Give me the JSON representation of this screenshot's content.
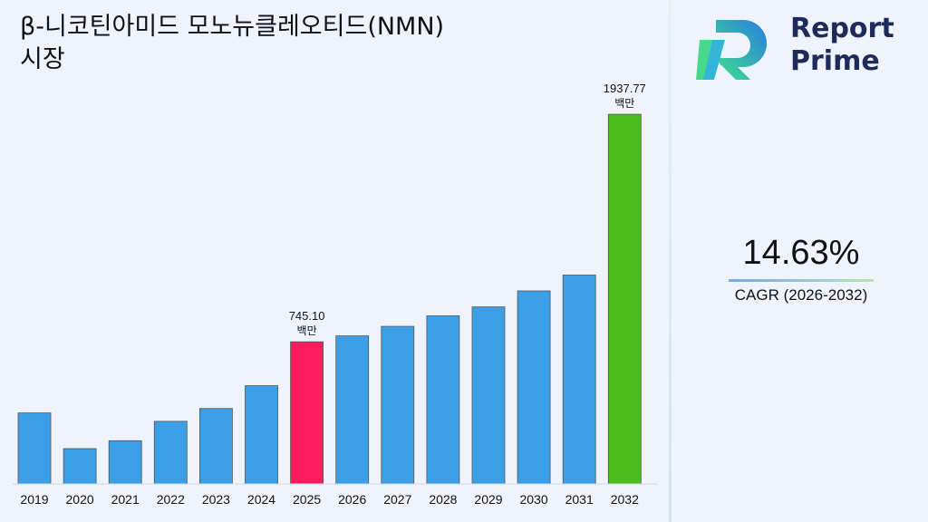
{
  "title": "β-니코틴아미드 모노뉴클레오티드(NMN) 시장",
  "brand": {
    "line1": "Report",
    "line2": "Prime"
  },
  "cagr": {
    "value": "14.63%",
    "label": "CAGR (2026-2032)"
  },
  "colors": {
    "bar": "#3a9fe6",
    "highlight": "#fc1c5c",
    "final": "#4cbc1c"
  },
  "chart_data": {
    "type": "bar",
    "categories": [
      "2019",
      "2020",
      "2021",
      "2022",
      "2023",
      "2024",
      "2025",
      "2026",
      "2027",
      "2028",
      "2029",
      "2030",
      "2031",
      "2032"
    ],
    "values": [
      372.3,
      185.1,
      226.5,
      328.2,
      395.5,
      515.1,
      745.1,
      776.3,
      826.2,
      881.3,
      928.1,
      1011.9,
      1095.1,
      1937.77
    ],
    "highlight_index": 6,
    "final_index": 13,
    "ylim": [
      0,
      2000
    ],
    "annotations": [
      {
        "index": 6,
        "value": "745.10",
        "unit": "백만"
      },
      {
        "index": 13,
        "value": "1937.77",
        "unit": "백만"
      }
    ],
    "grid": false,
    "legend": "none"
  }
}
